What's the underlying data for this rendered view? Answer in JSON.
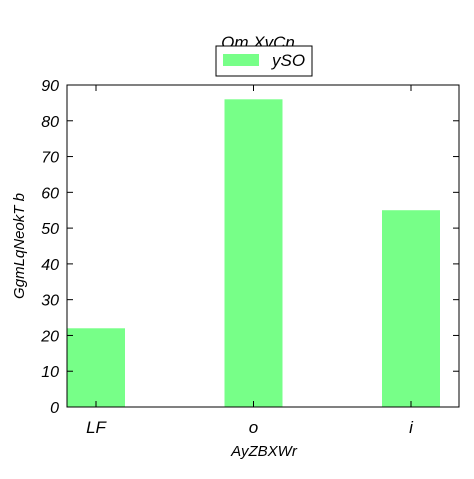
{
  "chart_data": {
    "type": "bar",
    "title": "Om   XvCn",
    "xlabel": "AyZBXWr",
    "ylabel": "GgmLqNeokT b",
    "categories": [
      "LF",
      "o",
      "i"
    ],
    "series": [
      {
        "name": "ySO",
        "values": [
          22,
          86,
          55
        ]
      }
    ],
    "ylim": [
      0,
      90
    ],
    "yticks": [
      0,
      10,
      20,
      30,
      40,
      50,
      60,
      70,
      80,
      90
    ],
    "grid": false,
    "legend_position": "top-center",
    "colors": {
      "bar": "#77ff88",
      "axis": "#000000"
    }
  }
}
